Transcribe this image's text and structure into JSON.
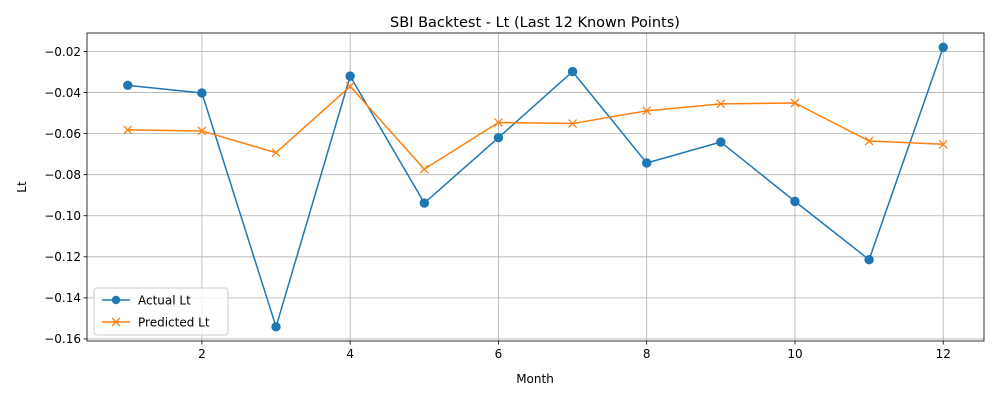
{
  "chart_data": {
    "type": "line",
    "title": "SBI Backtest - Lt (Last 12 Known Points)",
    "xlabel": "Month",
    "ylabel": "Lt",
    "x": [
      1,
      2,
      3,
      4,
      5,
      6,
      7,
      8,
      9,
      10,
      11,
      12
    ],
    "xlim": [
      0.45,
      12.55
    ],
    "ylim": [
      -0.161,
      -0.011
    ],
    "xticks": [
      2,
      4,
      6,
      8,
      10,
      12
    ],
    "xtick_labels": [
      "2",
      "4",
      "6",
      "8",
      "10",
      "12"
    ],
    "yticks": [
      -0.16,
      -0.14,
      -0.12,
      -0.1,
      -0.08,
      -0.06,
      -0.04,
      -0.02
    ],
    "ytick_labels": [
      "−0.16",
      "−0.14",
      "−0.12",
      "−0.10",
      "−0.08",
      "−0.06",
      "−0.04",
      "−0.02"
    ],
    "grid": true,
    "legend_position": "lower-left",
    "series": [
      {
        "name": "Actual Lt",
        "color": "#1f77b4",
        "marker": "circle",
        "values": [
          -0.0365,
          -0.0402,
          -0.1541,
          -0.032,
          -0.0938,
          -0.062,
          -0.0298,
          -0.0743,
          -0.0641,
          -0.093,
          -0.1214,
          -0.018
        ]
      },
      {
        "name": "Predicted Lt",
        "color": "#ff7f0e",
        "marker": "x",
        "values": [
          -0.0582,
          -0.0587,
          -0.0693,
          -0.037,
          -0.0773,
          -0.0546,
          -0.0551,
          -0.0489,
          -0.0455,
          -0.0451,
          -0.0636,
          -0.0652
        ]
      }
    ]
  }
}
